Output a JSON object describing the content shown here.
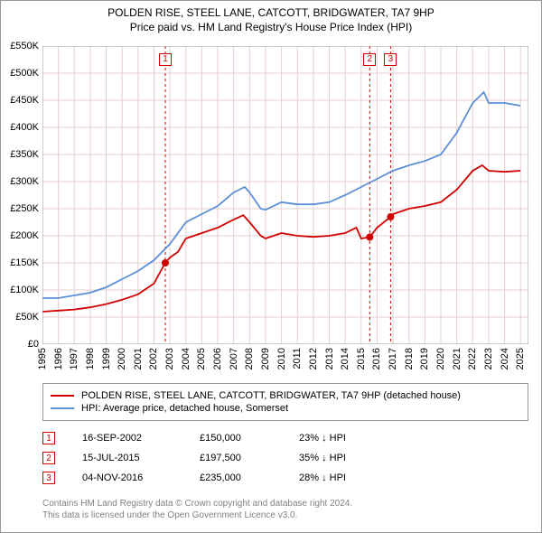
{
  "title_main": "POLDEN RISE, STEEL LANE, CATCOTT, BRIDGWATER, TA7 9HP",
  "title_sub": "Price paid vs. HM Land Registry's House Price Index (HPI)",
  "chart": {
    "type": "line",
    "background_color": "#ffffff",
    "grid_color": "#e5cfcf",
    "border_color": "#999999",
    "x_years": [
      1995,
      1996,
      1997,
      1998,
      1999,
      2000,
      2001,
      2002,
      2003,
      2004,
      2005,
      2006,
      2007,
      2008,
      2009,
      2010,
      2011,
      2012,
      2013,
      2014,
      2015,
      2016,
      2017,
      2018,
      2019,
      2020,
      2021,
      2022,
      2023,
      2024,
      2025
    ],
    "xlim": [
      1995,
      2025.5
    ],
    "ylim": [
      0,
      550000
    ],
    "ytick_step": 50000,
    "ytick_labels": [
      "£0",
      "£50K",
      "£100K",
      "£150K",
      "£200K",
      "£250K",
      "£300K",
      "£350K",
      "£400K",
      "£450K",
      "£500K",
      "£550K"
    ],
    "xtick_fontsize": 11,
    "ytick_fontsize": 11,
    "line_width": 1.8,
    "series": [
      {
        "name": "property",
        "label": "POLDEN RISE, STEEL LANE, CATCOTT, BRIDGWATER, TA7 9HP (detached house)",
        "color": "#d00000",
        "points": [
          [
            1995,
            60000
          ],
          [
            1996,
            62000
          ],
          [
            1997,
            64000
          ],
          [
            1998,
            68000
          ],
          [
            1999,
            74000
          ],
          [
            2000,
            82000
          ],
          [
            2001,
            92000
          ],
          [
            2002,
            112000
          ],
          [
            2002.7,
            150000
          ],
          [
            2003,
            160000
          ],
          [
            2003.5,
            170000
          ],
          [
            2004,
            195000
          ],
          [
            2005,
            205000
          ],
          [
            2006,
            215000
          ],
          [
            2007,
            230000
          ],
          [
            2007.6,
            238000
          ],
          [
            2008,
            225000
          ],
          [
            2008.7,
            200000
          ],
          [
            2009,
            195000
          ],
          [
            2010,
            205000
          ],
          [
            2011,
            200000
          ],
          [
            2012,
            198000
          ],
          [
            2013,
            200000
          ],
          [
            2014,
            205000
          ],
          [
            2014.7,
            215000
          ],
          [
            2015,
            195000
          ],
          [
            2015.54,
            197500
          ],
          [
            2016,
            215000
          ],
          [
            2016.85,
            235000
          ],
          [
            2017,
            240000
          ],
          [
            2018,
            250000
          ],
          [
            2019,
            255000
          ],
          [
            2020,
            262000
          ],
          [
            2021,
            285000
          ],
          [
            2022,
            320000
          ],
          [
            2022.6,
            330000
          ],
          [
            2023,
            320000
          ],
          [
            2024,
            318000
          ],
          [
            2025,
            320000
          ]
        ]
      },
      {
        "name": "hpi",
        "label": "HPI: Average price, detached house, Somerset",
        "color": "#5b8fd6",
        "points": [
          [
            1995,
            85000
          ],
          [
            1996,
            85000
          ],
          [
            1997,
            90000
          ],
          [
            1998,
            95000
          ],
          [
            1999,
            105000
          ],
          [
            2000,
            120000
          ],
          [
            2001,
            135000
          ],
          [
            2002,
            155000
          ],
          [
            2003,
            185000
          ],
          [
            2004,
            225000
          ],
          [
            2005,
            240000
          ],
          [
            2006,
            255000
          ],
          [
            2007,
            280000
          ],
          [
            2007.7,
            290000
          ],
          [
            2008,
            280000
          ],
          [
            2008.7,
            250000
          ],
          [
            2009,
            248000
          ],
          [
            2010,
            262000
          ],
          [
            2011,
            258000
          ],
          [
            2012,
            258000
          ],
          [
            2013,
            262000
          ],
          [
            2014,
            275000
          ],
          [
            2015,
            290000
          ],
          [
            2016,
            305000
          ],
          [
            2017,
            320000
          ],
          [
            2018,
            330000
          ],
          [
            2019,
            338000
          ],
          [
            2020,
            350000
          ],
          [
            2021,
            390000
          ],
          [
            2022,
            445000
          ],
          [
            2022.7,
            465000
          ],
          [
            2023,
            445000
          ],
          [
            2024,
            445000
          ],
          [
            2025,
            440000
          ]
        ]
      }
    ],
    "markers": [
      {
        "n": "1",
        "year": 2002.71,
        "date": "16-SEP-2002",
        "price": 150000,
        "price_label": "£150,000",
        "delta": "23% ↓ HPI",
        "dot": true
      },
      {
        "n": "2",
        "year": 2015.54,
        "date": "15-JUL-2015",
        "price": 197500,
        "price_label": "£197,500",
        "delta": "35% ↓ HPI",
        "dot": true
      },
      {
        "n": "3",
        "year": 2016.85,
        "date": "04-NOV-2016",
        "price": 235000,
        "price_label": "£235,000",
        "delta": "28% ↓ HPI",
        "dot": true
      }
    ],
    "marker_line_color": "#d00000",
    "marker_line_dash": "3,3",
    "marker_dot_radius": 4
  },
  "legend_series_property": "POLDEN RISE, STEEL LANE, CATCOTT, BRIDGWATER, TA7 9HP (detached house)",
  "legend_series_hpi": "HPI: Average price, detached house, Somerset",
  "footer_line1": "Contains HM Land Registry data © Crown copyright and database right 2024.",
  "footer_line2": "This data is licensed under the Open Government Licence v3.0."
}
